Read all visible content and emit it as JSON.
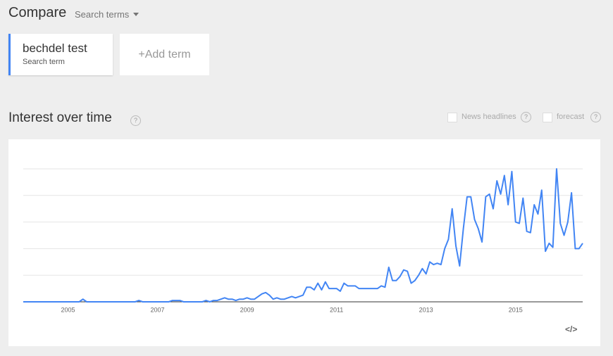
{
  "header": {
    "title": "Compare",
    "dropdown": "Search terms"
  },
  "terms": [
    {
      "label": "bechdel test",
      "sublabel": "Search term"
    }
  ],
  "add_term": "+Add term",
  "section_title": "Interest over time",
  "help_icon": "?",
  "options": [
    "News headlines",
    "forecast"
  ],
  "embed_icon": "</>",
  "chart_data": {
    "type": "line",
    "categories": [
      null,
      null,
      null,
      null,
      null,
      null,
      null,
      null,
      null,
      null,
      null,
      null,
      "2005",
      null,
      null,
      null,
      null,
      null,
      null,
      null,
      null,
      null,
      null,
      null,
      null,
      null,
      null,
      null,
      null,
      null,
      null,
      null,
      null,
      null,
      null,
      null,
      "2007",
      null,
      null,
      null,
      null,
      null,
      null,
      null,
      null,
      null,
      null,
      null,
      null,
      null,
      null,
      null,
      null,
      null,
      null,
      null,
      null,
      null,
      null,
      null,
      "2009",
      null,
      null,
      null,
      null,
      null,
      null,
      null,
      null,
      null,
      null,
      null,
      null,
      null,
      null,
      null,
      null,
      null,
      null,
      null,
      null,
      null,
      null,
      null,
      "2011",
      null,
      null,
      null,
      null,
      null,
      null,
      null,
      null,
      null,
      null,
      null,
      null,
      null,
      null,
      null,
      null,
      null,
      null,
      null,
      null,
      null,
      null,
      null,
      "2013",
      null,
      null,
      null,
      null,
      null,
      null,
      null,
      null,
      null,
      null,
      null,
      null,
      null,
      null,
      null,
      null,
      null,
      null,
      null,
      null,
      null,
      null,
      null,
      "2015",
      null,
      null,
      null,
      null,
      null,
      null,
      null,
      null,
      null,
      null,
      null,
      null,
      null,
      null,
      null,
      null,
      null,
      null
    ],
    "series": [
      {
        "name": "bechdel test",
        "color": "#4285f4",
        "values": [
          0,
          0,
          0,
          0,
          0,
          0,
          0,
          0,
          0,
          0,
          0,
          0,
          0,
          0,
          0,
          0,
          2,
          0,
          0,
          0,
          0,
          0,
          0,
          0,
          0,
          0,
          0,
          0,
          0,
          0,
          0,
          1,
          0,
          0,
          0,
          0,
          0,
          0,
          0,
          0,
          1,
          1,
          1,
          0,
          0,
          0,
          0,
          0,
          0,
          1,
          0,
          1,
          1,
          2,
          3,
          2,
          2,
          1,
          2,
          2,
          3,
          2,
          2,
          4,
          6,
          7,
          5,
          2,
          3,
          2,
          2,
          3,
          4,
          3,
          4,
          5,
          11,
          11,
          9,
          14,
          9,
          15,
          10,
          10,
          10,
          8,
          14,
          12,
          12,
          12,
          10,
          10,
          10,
          10,
          10,
          10,
          12,
          11,
          26,
          16,
          16,
          19,
          24,
          23,
          14,
          16,
          20,
          25,
          21,
          30,
          28,
          29,
          28,
          40,
          47,
          70,
          42,
          27,
          55,
          79,
          79,
          62,
          55,
          45,
          79,
          81,
          70,
          91,
          81,
          95,
          73,
          98,
          60,
          59,
          78,
          53,
          52,
          73,
          66,
          84,
          38,
          44,
          41,
          100,
          59,
          50,
          60,
          82,
          40,
          40,
          44
        ]
      }
    ],
    "ylim": [
      0,
      100
    ],
    "ygrid": [
      20,
      40,
      60,
      80,
      100
    ]
  }
}
